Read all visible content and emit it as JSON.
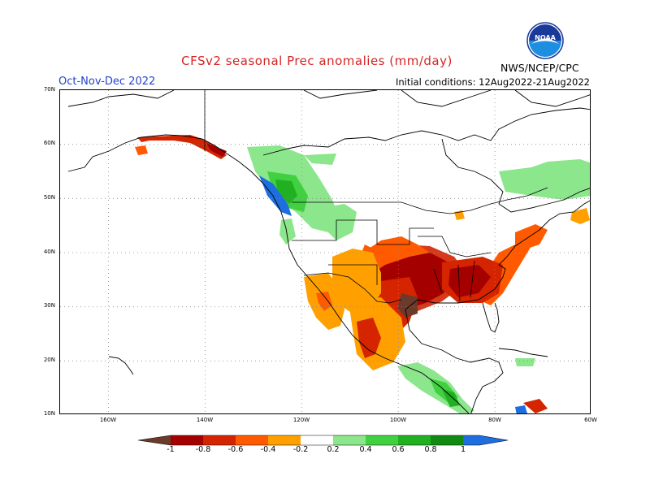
{
  "header": {
    "title": "CFSv2 seasonal Prec anomalies (mm/day)",
    "season": "Oct-Nov-Dec 2022",
    "initial_conditions": "Initial conditions: 12Aug2022-21Aug2022",
    "organization": "NWS/NCEP/CPC",
    "logo_text": "NOAA"
  },
  "map": {
    "lat_labels": [
      "70N",
      "60N",
      "50N",
      "40N",
      "30N",
      "20N",
      "10N"
    ],
    "lon_labels": [
      "160W",
      "140W",
      "120W",
      "100W",
      "80W",
      "60W"
    ],
    "extent": {
      "lon": [
        -170,
        -60
      ],
      "lat": [
        10,
        70
      ]
    },
    "grid": true
  },
  "colorbar": {
    "labels": [
      "-1",
      "-0.8",
      "-0.6",
      "-0.4",
      "-0.2",
      "0.2",
      "0.4",
      "0.6",
      "0.8",
      "1"
    ],
    "colors": [
      "#6b3a2a",
      "#a50000",
      "#d42400",
      "#ff5a00",
      "#ffa000",
      "#ffffff",
      "#8ce68c",
      "#40d040",
      "#21b021",
      "#108a10",
      "#1e6ee0"
    ]
  },
  "colors": {
    "title": "#d62424",
    "season": "#2244cc",
    "dry_brown": "#6b3a2a",
    "dry_dark": "#a50000",
    "dry_red": "#d42400",
    "dry_orange_red": "#ff5a00",
    "dry_orange": "#ffa000",
    "wet_light": "#8ce68c",
    "wet_mid": "#40d040",
    "wet_dark": "#21b021",
    "wet_blue": "#1e6ee0"
  }
}
